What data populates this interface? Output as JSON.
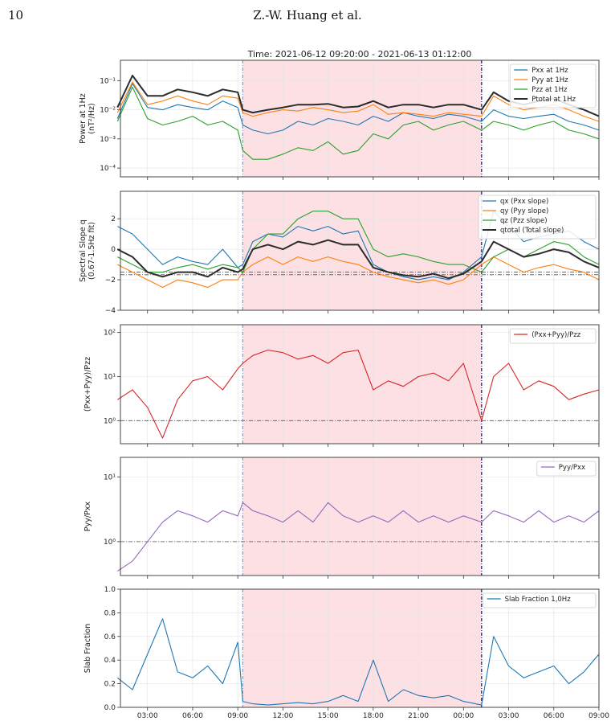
{
  "page": {
    "number": "10",
    "running_head": "Z.-W. Huang et al."
  },
  "figure": {
    "title": "Time: 2021-06-12 09:20:00 - 2021-06-13 01:12:00",
    "x_tick_labels": [
      "03:00",
      "06:00",
      "09:00",
      "12:00",
      "15:00",
      "18:00",
      "21:00",
      "00:00",
      "03:00",
      "06:00",
      "09:00"
    ],
    "colors": {
      "shade": "#fde0e4",
      "event_start_line": "#8e9bb0",
      "event_end_line": "#1f2fa0",
      "reference_line": "#555555"
    }
  },
  "chart_data": [
    {
      "type": "line",
      "ylabel": "Power at 1Hz\n(nT²/Hz)",
      "yscale": "log",
      "ylim": [
        5e-05,
        0.5
      ],
      "y_ticks": [
        {
          "v": 0.1,
          "label": "10⁻¹"
        },
        {
          "v": 0.01,
          "label": "10⁻²"
        },
        {
          "v": 0.001,
          "label": "10⁻³"
        },
        {
          "v": 0.0001,
          "label": "10⁻⁴"
        }
      ],
      "legend": "top-right",
      "x_hours": [
        1,
        2,
        3,
        4,
        5,
        6,
        7,
        8,
        9,
        9.33,
        10,
        11,
        12,
        13,
        14,
        15,
        16,
        17,
        18,
        19,
        20,
        21,
        22,
        23,
        24,
        25.2,
        26,
        27,
        28,
        29,
        30,
        31,
        32,
        33
      ],
      "series": [
        {
          "name": "Pxx at 1Hz",
          "color": "#1f77b4",
          "values": [
            0.005,
            0.08,
            0.012,
            0.01,
            0.015,
            0.012,
            0.01,
            0.02,
            0.012,
            0.003,
            0.002,
            0.0015,
            0.002,
            0.004,
            0.003,
            0.005,
            0.004,
            0.003,
            0.006,
            0.004,
            0.008,
            0.006,
            0.005,
            0.007,
            0.006,
            0.004,
            0.01,
            0.006,
            0.005,
            0.006,
            0.007,
            0.004,
            0.003,
            0.002
          ]
        },
        {
          "name": "Pyy at 1Hz",
          "color": "#ff7f0e",
          "values": [
            0.008,
            0.09,
            0.015,
            0.02,
            0.03,
            0.02,
            0.015,
            0.03,
            0.025,
            0.008,
            0.006,
            0.008,
            0.01,
            0.009,
            0.012,
            0.01,
            0.008,
            0.009,
            0.015,
            0.007,
            0.008,
            0.007,
            0.006,
            0.008,
            0.007,
            0.006,
            0.03,
            0.015,
            0.01,
            0.012,
            0.015,
            0.01,
            0.006,
            0.004
          ]
        },
        {
          "name": "Pzz at 1Hz",
          "color": "#2ca02c",
          "values": [
            0.004,
            0.06,
            0.005,
            0.003,
            0.004,
            0.006,
            0.003,
            0.004,
            0.002,
            0.0004,
            0.0002,
            0.0002,
            0.0003,
            0.0005,
            0.0004,
            0.0008,
            0.0003,
            0.0004,
            0.0015,
            0.001,
            0.003,
            0.004,
            0.002,
            0.003,
            0.004,
            0.002,
            0.004,
            0.003,
            0.002,
            0.003,
            0.004,
            0.002,
            0.0015,
            0.001
          ]
        },
        {
          "name": "Ptotal at 1Hz",
          "color": "#2b2b2b",
          "values": [
            0.012,
            0.15,
            0.03,
            0.03,
            0.05,
            0.04,
            0.03,
            0.05,
            0.04,
            0.01,
            0.008,
            0.01,
            0.012,
            0.015,
            0.015,
            0.016,
            0.012,
            0.013,
            0.02,
            0.012,
            0.015,
            0.015,
            0.012,
            0.015,
            0.015,
            0.01,
            0.04,
            0.02,
            0.015,
            0.02,
            0.025,
            0.015,
            0.01,
            0.006
          ]
        }
      ]
    },
    {
      "type": "line",
      "ylabel": "Spectral Slope q\n(0.67-1.5Hz fit)",
      "yscale": "linear",
      "ylim": [
        -4,
        3.8
      ],
      "y_ticks": [
        {
          "v": 2,
          "label": "2"
        },
        {
          "v": 0,
          "label": "0"
        },
        {
          "v": -2,
          "label": "−2"
        },
        {
          "v": -4,
          "label": "−4"
        }
      ],
      "ref_lines": [
        -1.5,
        -1.67
      ],
      "legend": "top-right",
      "x_hours": [
        1,
        2,
        3,
        4,
        5,
        6,
        7,
        8,
        9,
        9.33,
        10,
        11,
        12,
        13,
        14,
        15,
        16,
        17,
        18,
        19,
        20,
        21,
        22,
        23,
        24,
        25.2,
        26,
        27,
        28,
        29,
        30,
        31,
        32,
        33
      ],
      "series": [
        {
          "name": "qx (Pxx slope)",
          "color": "#1f77b4",
          "values": [
            1.5,
            1,
            0,
            -1,
            -0.5,
            -0.8,
            -1,
            0,
            -1.2,
            -1,
            0.5,
            1,
            0.8,
            1.5,
            1.2,
            1.5,
            1,
            1.2,
            -1,
            -1.5,
            -1.8,
            -2,
            -1.8,
            -2,
            -1.5,
            -0.5,
            2.5,
            1.5,
            0.5,
            0.8,
            1,
            1.2,
            0.5,
            0
          ]
        },
        {
          "name": "qy (Pyy slope)",
          "color": "#ff7f0e",
          "values": [
            -1,
            -1.5,
            -2,
            -2.5,
            -2,
            -2.2,
            -2.5,
            -2,
            -2,
            -1.5,
            -1,
            -0.5,
            -1,
            -0.5,
            -0.8,
            -0.5,
            -0.8,
            -1,
            -1.5,
            -1.8,
            -2,
            -2.2,
            -2,
            -2.3,
            -2,
            -1,
            -0.5,
            -1,
            -1.5,
            -1.2,
            -1,
            -1.3,
            -1.5,
            -2
          ]
        },
        {
          "name": "qz (Pzz slope)",
          "color": "#2ca02c",
          "values": [
            -0.5,
            -1,
            -1.5,
            -1.5,
            -1.2,
            -1,
            -1.3,
            -1,
            -1.2,
            -1.5,
            0,
            1,
            1,
            2,
            2.5,
            2.5,
            2,
            2,
            0,
            -0.5,
            -0.3,
            -0.5,
            -0.8,
            -1,
            -1,
            -1.5,
            -0.5,
            0,
            -0.5,
            0,
            0.5,
            0.3,
            -0.5,
            -1
          ]
        },
        {
          "name": "qtotal (Total slope)",
          "color": "#2b2b2b",
          "values": [
            0,
            -0.5,
            -1.5,
            -1.8,
            -1.5,
            -1.5,
            -1.8,
            -1.2,
            -1.5,
            -1.3,
            0,
            0.3,
            0,
            0.5,
            0.3,
            0.6,
            0.3,
            0.3,
            -1.2,
            -1.5,
            -1.7,
            -1.8,
            -1.6,
            -1.9,
            -1.6,
            -0.8,
            0.5,
            0,
            -0.5,
            -0.3,
            0,
            -0.2,
            -0.8,
            -1.2
          ]
        }
      ]
    },
    {
      "type": "line",
      "ylabel": "(Pxx+Pyy)/Pzz",
      "yscale": "log",
      "ylim": [
        0.3,
        150
      ],
      "y_ticks": [
        {
          "v": 100,
          "label": "10²"
        },
        {
          "v": 10,
          "label": "10¹"
        },
        {
          "v": 1,
          "label": "10⁰"
        }
      ],
      "ref_lines": [
        1
      ],
      "legend": "top-right",
      "x_hours": [
        1,
        2,
        3,
        4,
        5,
        6,
        7,
        8,
        9,
        9.33,
        10,
        11,
        12,
        13,
        14,
        15,
        16,
        17,
        18,
        19,
        20,
        21,
        22,
        23,
        24,
        25.2,
        26,
        27,
        28,
        29,
        30,
        31,
        32,
        33
      ],
      "series": [
        {
          "name": "(Pxx+Pyy)/Pzz",
          "color": "#d62728",
          "values": [
            3,
            5,
            2,
            0.4,
            3,
            8,
            10,
            5,
            15,
            20,
            30,
            40,
            35,
            25,
            30,
            20,
            35,
            40,
            5,
            8,
            6,
            10,
            12,
            8,
            20,
            1,
            10,
            20,
            5,
            8,
            6,
            3,
            4,
            5
          ]
        }
      ]
    },
    {
      "type": "line",
      "ylabel": "Pyy/Pxx",
      "yscale": "log",
      "ylim": [
        0.3,
        20
      ],
      "y_ticks": [
        {
          "v": 10,
          "label": "10¹"
        },
        {
          "v": 1,
          "label": "10⁰"
        }
      ],
      "ref_lines": [
        1
      ],
      "legend": "top-right",
      "x_hours": [
        1,
        2,
        3,
        4,
        5,
        6,
        7,
        8,
        9,
        9.33,
        10,
        11,
        12,
        13,
        14,
        15,
        16,
        17,
        18,
        19,
        20,
        21,
        22,
        23,
        24,
        25.2,
        26,
        27,
        28,
        29,
        30,
        31,
        32,
        33
      ],
      "series": [
        {
          "name": "Pyy/Pxx",
          "color": "#9467bd",
          "values": [
            0.35,
            0.5,
            1,
            2,
            3,
            2.5,
            2,
            3,
            2.5,
            4,
            3,
            2.5,
            2,
            3,
            2,
            4,
            2.5,
            2,
            2.5,
            2,
            3,
            2,
            2.5,
            2,
            2.5,
            2,
            3,
            2.5,
            2,
            3,
            2,
            2.5,
            2,
            3
          ]
        }
      ]
    },
    {
      "type": "line",
      "ylabel": "Slab Fraction",
      "yscale": "linear",
      "ylim": [
        0,
        1
      ],
      "y_ticks": [
        {
          "v": 0,
          "label": "0.0"
        },
        {
          "v": 0.2,
          "label": "0.2"
        },
        {
          "v": 0.4,
          "label": "0.4"
        },
        {
          "v": 0.6,
          "label": "0.6"
        },
        {
          "v": 0.8,
          "label": "0.8"
        },
        {
          "v": 1,
          "label": "1.0"
        }
      ],
      "legend": "top-right",
      "x_hours": [
        1,
        2,
        3,
        4,
        5,
        6,
        7,
        8,
        9,
        9.33,
        10,
        11,
        12,
        13,
        14,
        15,
        16,
        17,
        18,
        19,
        20,
        21,
        22,
        23,
        24,
        25.2,
        26,
        27,
        28,
        29,
        30,
        31,
        32,
        33
      ],
      "series": [
        {
          "name": "Slab Fraction 1,0Hz",
          "color": "#1f77b4",
          "values": [
            0.25,
            0.15,
            0.45,
            0.75,
            0.3,
            0.25,
            0.35,
            0.2,
            0.55,
            0.05,
            0.03,
            0.02,
            0.03,
            0.04,
            0.03,
            0.05,
            0.1,
            0.05,
            0.4,
            0.05,
            0.15,
            0.1,
            0.08,
            0.1,
            0.05,
            0.02,
            0.6,
            0.35,
            0.25,
            0.3,
            0.35,
            0.2,
            0.3,
            0.45
          ]
        }
      ]
    }
  ]
}
